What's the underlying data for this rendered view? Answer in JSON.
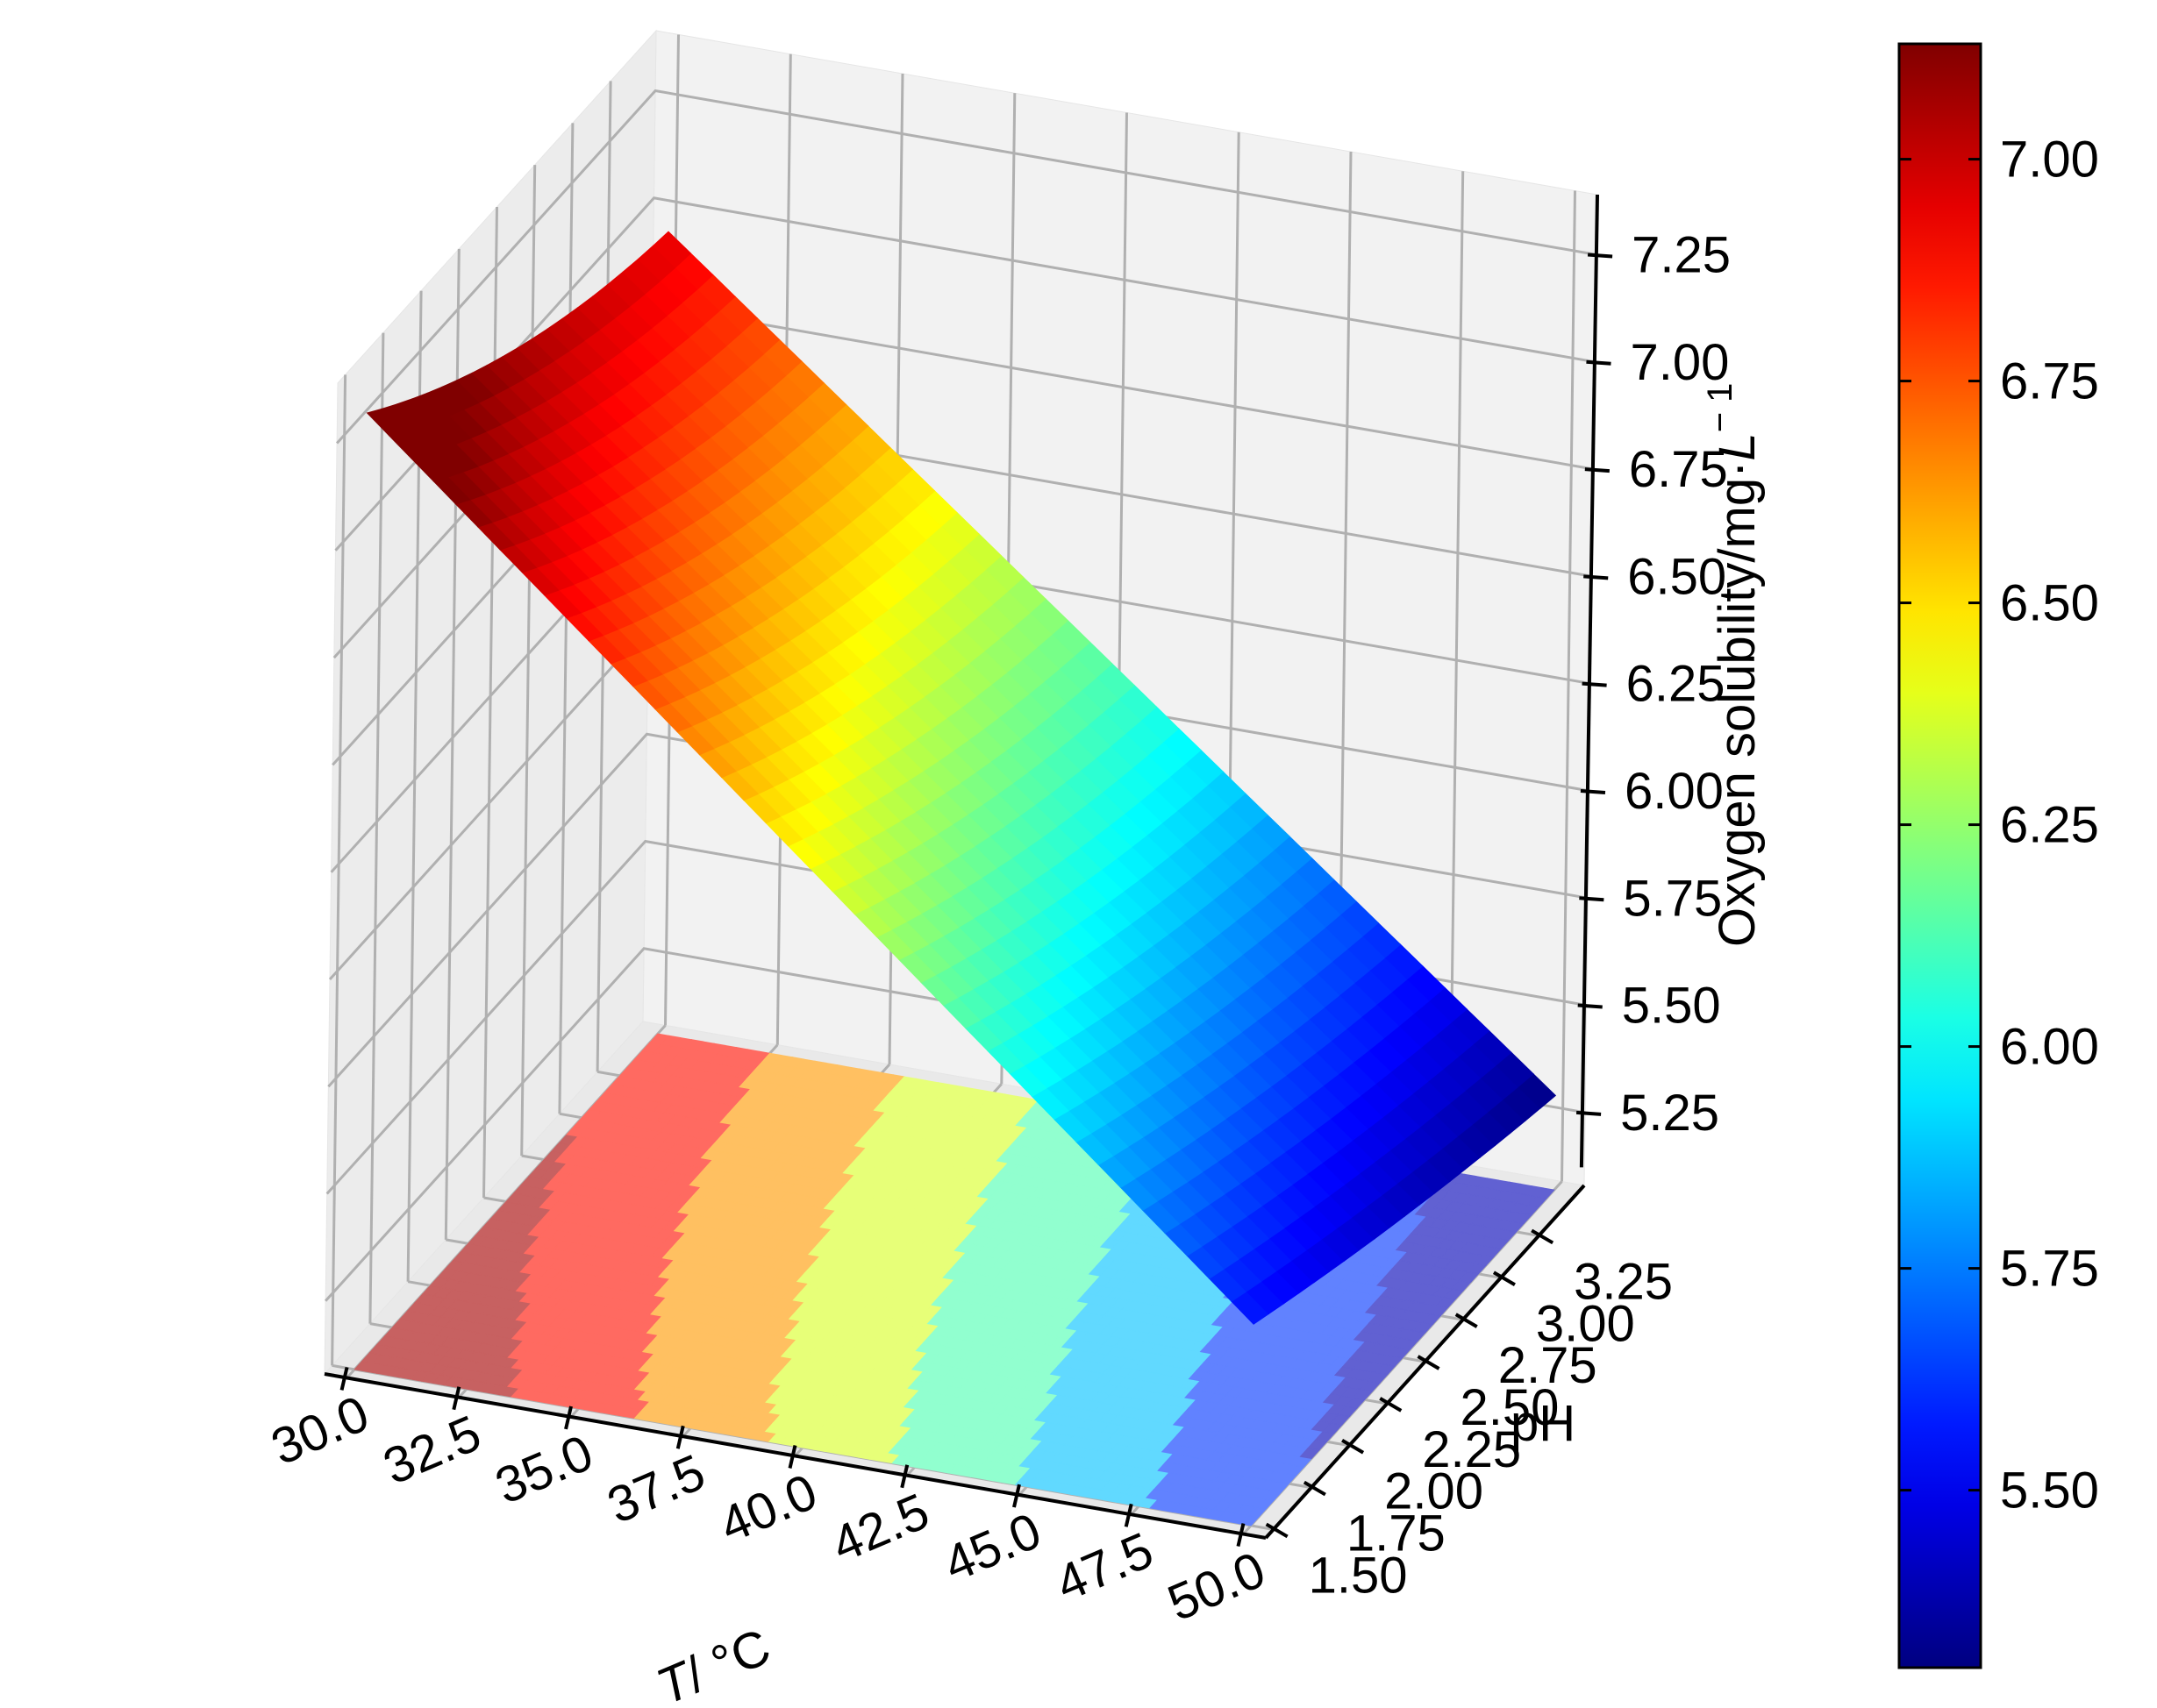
{
  "chart_data": {
    "type": "surface3d",
    "title": "",
    "x_axis": {
      "label": "T/ °C",
      "ticks": [
        30.0,
        32.5,
        35.0,
        37.5,
        40.0,
        42.5,
        45.0,
        47.5,
        50.0
      ],
      "tick_labels": [
        "30.0",
        "32.5",
        "35.0",
        "37.5",
        "40.0",
        "42.5",
        "45.0",
        "47.5",
        "50.0"
      ],
      "range": [
        29.5,
        50.5
      ]
    },
    "y_axis": {
      "label": "pH",
      "ticks": [
        1.5,
        1.75,
        2.0,
        2.25,
        2.5,
        2.75,
        3.0,
        3.25
      ],
      "tick_labels": [
        "1.50",
        "1.75",
        "2.00",
        "2.25",
        "2.50",
        "2.75",
        "3.00",
        "3.25"
      ],
      "range": [
        1.45,
        3.55
      ]
    },
    "z_axis": {
      "label": "Oxygen solubility/mg·L",
      "label_exponent": "− 1",
      "ticks": [
        5.25,
        5.5,
        5.75,
        6.0,
        6.25,
        6.5,
        6.75,
        7.0,
        7.25
      ],
      "tick_labels": [
        "5.25",
        "5.50",
        "5.75",
        "6.00",
        "6.25",
        "6.50",
        "6.75",
        "7.00",
        "7.25"
      ]
    },
    "colormap": "jet",
    "colorbar": {
      "range": [
        5.3,
        7.13
      ],
      "ticks": [
        5.5,
        5.75,
        6.0,
        6.25,
        6.5,
        6.75,
        7.0
      ],
      "tick_labels": [
        "5.50",
        "5.75",
        "6.00",
        "6.25",
        "6.50",
        "6.75",
        "7.00"
      ]
    },
    "surface": {
      "x_range": [
        30.0,
        50.0
      ],
      "y_range": [
        1.5,
        3.5
      ],
      "z_corners": {
        "T30_pH1.5": 7.13,
        "T30_pH3.5": 6.95,
        "T50_pH1.5": 5.55,
        "T50_pH3.5": 5.3
      },
      "curvature_note": "slight upward curvature at low pH"
    },
    "contour_projection": {
      "plane": "floor",
      "levels": [
        5.5,
        5.75,
        6.0,
        6.25,
        6.5,
        6.75,
        7.0
      ]
    },
    "grid": true
  }
}
